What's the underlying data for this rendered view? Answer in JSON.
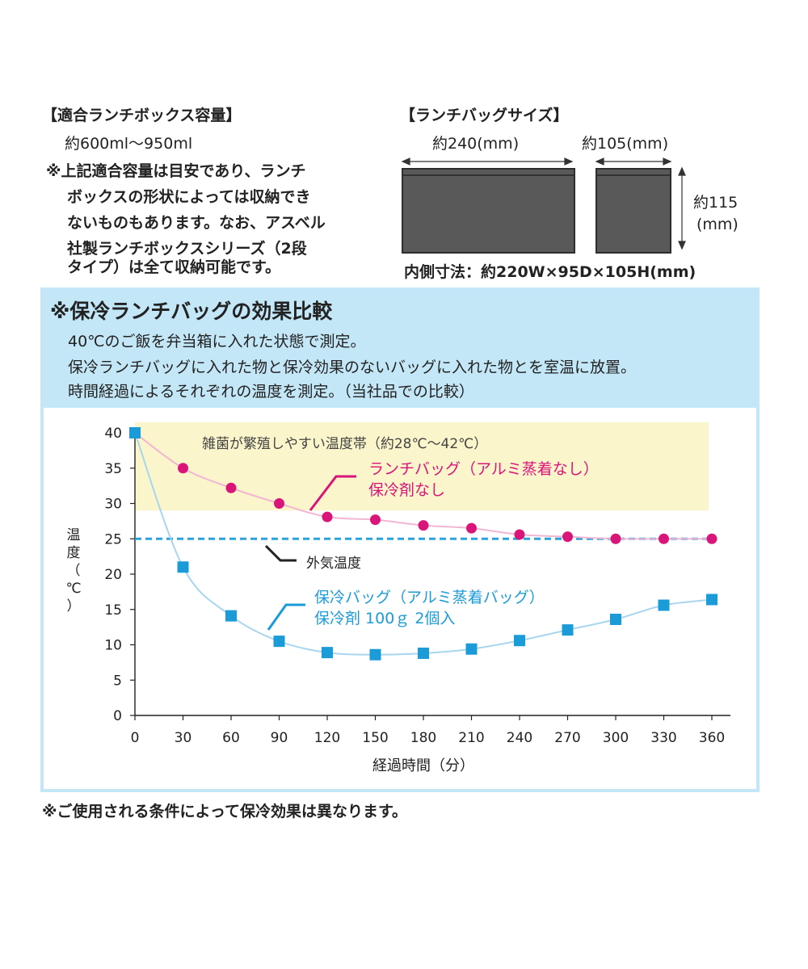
{
  "capacity": {
    "heading": "【適合ランチボックス容量】",
    "range": "約600ml〜950ml",
    "note_lines": [
      "※上記適合容量は目安であり、ランチ",
      "ボックスの形状によっては収納でき",
      "ないものもあります。なお、アスベル",
      "社製ランチボックスシリーズ（2段",
      "タイプ）は全て収納可能です。"
    ]
  },
  "size": {
    "heading": "【ランチバッグサイズ】",
    "width_label": "約240(mm)",
    "depth_label": "約105(mm)",
    "height_label_1": "約115",
    "height_label_2": "(mm)",
    "inner_dims": "内側寸法：約220W×95D×105H(mm)"
  },
  "comparison": {
    "title": "※保冷ランチバッグの効果比較",
    "desc_lines": [
      "40℃のご飯を弁当箱に入れた状態で測定。",
      "保冷ランチバッグに入れた物と保冷効果のないバッグに入れた物とを室温に放置。",
      "時間経過によるそれぞれの温度を測定。（当社品での比較）"
    ]
  },
  "footer": "※ご使用される条件によって保冷効果は異なります。",
  "colors": {
    "panel": "#c3e7f7",
    "band": "#fbf5cc",
    "pink": "#d9157a",
    "pink_line": "#f2b6d2",
    "blue": "#1c9bd9",
    "blue_line": "#a8d6ef",
    "ambient": "#2aa3dc",
    "axis": "#222222"
  },
  "chart_data": {
    "type": "scatter",
    "xlabel": "経過時間（分）",
    "ylabel": "温度（℃）",
    "ylabel_chars": [
      "温",
      "度",
      "（",
      "℃",
      "）"
    ],
    "x": [
      0,
      30,
      60,
      90,
      120,
      150,
      180,
      210,
      240,
      270,
      300,
      330,
      360
    ],
    "xlim": [
      0,
      360
    ],
    "ylim": [
      0,
      40
    ],
    "xticks": [
      0,
      30,
      60,
      90,
      120,
      150,
      180,
      210,
      240,
      270,
      300,
      330,
      360
    ],
    "yticks": [
      0,
      5,
      10,
      15,
      20,
      25,
      30,
      35,
      40
    ],
    "series": [
      {
        "name": "ランチバッグ（アルミ蒸着なし） 保冷剤なし",
        "label_lines": [
          "ランチバッグ（アルミ蒸着なし）",
          "保冷剤なし"
        ],
        "marker": "circle",
        "values": [
          40,
          35,
          32.2,
          30,
          28.1,
          27.7,
          26.9,
          26.5,
          25.6,
          25.3,
          25,
          25,
          25
        ]
      },
      {
        "name": "保冷バッグ（アルミ蒸着バッグ） 保冷剤 100g 2個入",
        "label_lines": [
          "保冷バッグ（アルミ蒸着バッグ）",
          "保冷剤 100ｇ 2個入"
        ],
        "marker": "square",
        "values": [
          40,
          21,
          14.1,
          10.5,
          8.9,
          8.6,
          8.8,
          9.4,
          10.6,
          12.1,
          13.6,
          15.6,
          16.4
        ]
      }
    ],
    "reference_line": {
      "label": "外気温度",
      "value": 25
    },
    "band": {
      "label": "雑菌が繁殖しやすい温度帯（約28℃〜42℃）",
      "from": 29,
      "to": 42
    }
  }
}
